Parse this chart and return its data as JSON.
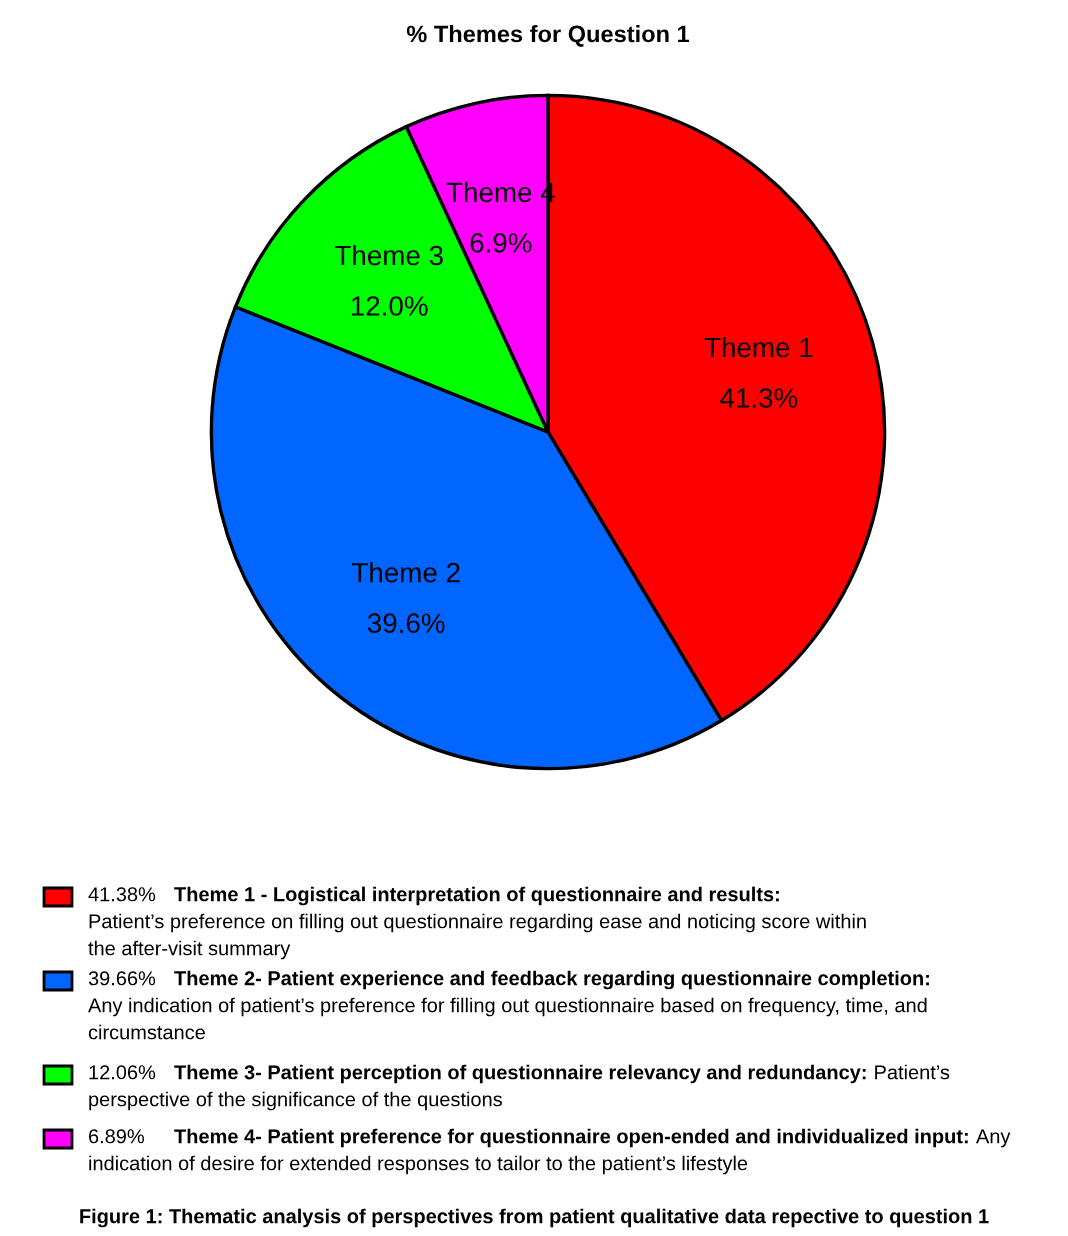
{
  "chart_data": {
    "type": "pie",
    "title": "% Themes for Question 1",
    "categories": [
      "Theme 1",
      "Theme 2",
      "Theme 3",
      "Theme 4"
    ],
    "values": [
      41.3,
      39.6,
      12.0,
      6.9
    ],
    "value_labels": [
      "41.3%",
      "39.6%",
      "12.0%",
      "6.9%"
    ],
    "colors": [
      "#ff0000",
      "#0066ff",
      "#00ff00",
      "#ff00ff"
    ],
    "annotations": [
      "41.38%",
      "Theme 1 - Logistical interpretation of questionnaire and results:",
      "\nPatient’s preference on filling out questionnaire regarding ease and noticing score within\nthe after-visit summary",
      "39.66%",
      "Theme 2- Patient experience and feedback regarding questionnaire completion:",
      "\nAny indication of patient’s preference for filling out questionnaire based on frequency, time, and\ncircumstance",
      "12.06%",
      "Theme 3- Patient perception of questionnaire relevancy and redundancy:",
      " Patient’s\nperspective of the significance of the questions",
      "6.89%",
      "Theme 4- Patient preference for questionnaire open-ended and individualized input:",
      " Any\nindication of desire for extended responses to tailor to the patient’s lifestyle",
      "Figure 1: Thematic analysis of perspectives from patient qualitative data repective to question 1"
    ]
  }
}
